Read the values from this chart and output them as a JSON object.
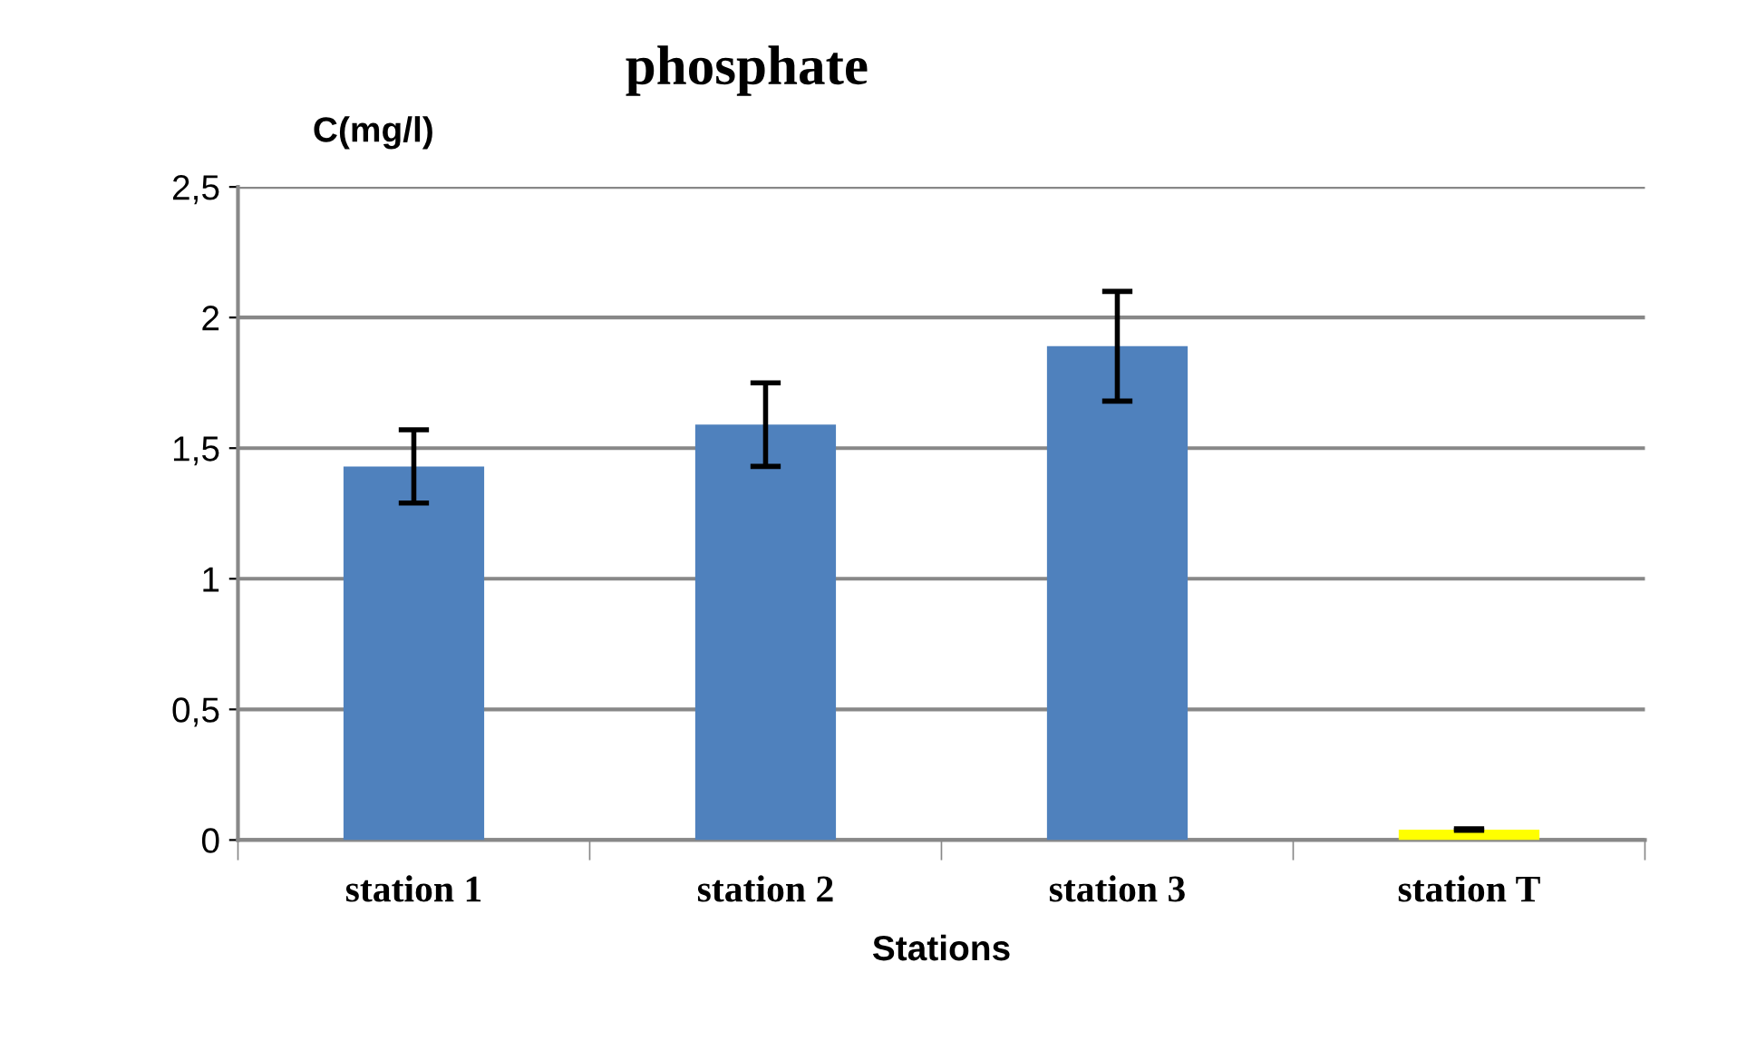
{
  "chart_data": {
    "type": "bar",
    "title": "phosphate",
    "ylabel": "C(mg/l)",
    "xlabel": "Stations",
    "categories": [
      "station 1",
      "station 2",
      "station 3",
      "station T"
    ],
    "values": [
      1.43,
      1.59,
      1.89,
      0.04
    ],
    "errors": [
      0.14,
      0.16,
      0.21,
      0.003
    ],
    "colors": [
      "#4f81bd",
      "#4f81bd",
      "#4f81bd",
      "#ffff00"
    ],
    "ylim": [
      0,
      2.5
    ],
    "yticks": [
      {
        "value": 0,
        "label": "0"
      },
      {
        "value": 0.5,
        "label": "0,5"
      },
      {
        "value": 1,
        "label": "1"
      },
      {
        "value": 1.5,
        "label": "1,5"
      },
      {
        "value": 2,
        "label": "2"
      },
      {
        "value": 2.5,
        "label": "2,5"
      }
    ],
    "grid": "y"
  }
}
